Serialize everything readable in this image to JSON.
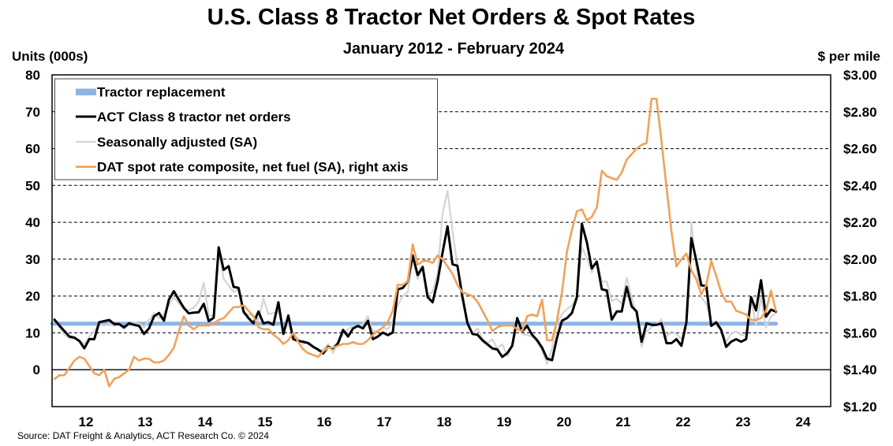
{
  "chart_data": {
    "type": "line",
    "title": "U.S. Class 8 Tractor Net Orders & Spot Rates",
    "subtitle": "January 2012 - February 2024",
    "ylabel_left": "Units (000s)",
    "ylabel_right": "$ per mile",
    "xlabel": "",
    "frequency": "monthly",
    "x_start": "2012-01",
    "x_end": "2024-02",
    "xlim": [
      2011.96,
      2025.0
    ],
    "ylim_left": [
      -10,
      80
    ],
    "ylim_right": [
      1.2,
      3.0
    ],
    "grid": "horizontal dashed at left-axis 10-unit intervals; solid line at 0",
    "x_ticks": [
      "12",
      "13",
      "14",
      "15",
      "16",
      "17",
      "18",
      "19",
      "20",
      "21",
      "22",
      "23",
      "24"
    ],
    "y_left_ticks": [
      "80",
      "70",
      "60",
      "50",
      "40",
      "30",
      "20",
      "10",
      "0"
    ],
    "y_right_ticks": [
      "$3.00",
      "$2.80",
      "$2.60",
      "$2.40",
      "$2.20",
      "$2.00",
      "$1.80",
      "$1.60",
      "$1.40",
      "$1.20"
    ],
    "legend": {
      "position": "top-left"
    },
    "series": [
      {
        "name": "Tractor replacement",
        "axis": "left",
        "color": "#8DB4E2",
        "constant_value": 12.5
      },
      {
        "name": "ACT Class 8 tractor net orders",
        "axis": "left",
        "color": "#000000",
        "values": [
          13.6,
          12.0,
          10.5,
          9.0,
          8.7,
          7.8,
          5.8,
          8.3,
          8.3,
          12.9,
          13.2,
          13.5,
          12.4,
          12.4,
          11.5,
          12.6,
          12.2,
          11.9,
          9.7,
          11.2,
          14.5,
          15.4,
          13.3,
          19.0,
          21.3,
          19.0,
          16.8,
          15.3,
          15.5,
          15.6,
          17.9,
          13.2,
          14.1,
          33.2,
          27.1,
          28.1,
          22.5,
          22.2,
          15.8,
          14.0,
          12.6,
          15.8,
          12.6,
          12.9,
          12.2,
          18.3,
          9.7,
          14.7,
          8.3,
          7.8,
          7.6,
          7.2,
          6.2,
          5.5,
          4.4,
          6.2,
          5.8,
          7.2,
          10.8,
          9.0,
          11.2,
          11.9,
          11.2,
          13.3,
          8.3,
          9.0,
          10.1,
          9.4,
          10.1,
          21.8,
          22.2,
          24.0,
          31.0,
          25.7,
          27.9,
          19.7,
          18.3,
          24.0,
          31.8,
          38.9,
          28.6,
          28.2,
          19.7,
          12.6,
          9.7,
          9.5,
          8.0,
          6.9,
          5.8,
          5.5,
          3.5,
          4.5,
          6.5,
          14.0,
          10.4,
          11.9,
          9.5,
          8.0,
          6.0,
          3.0,
          2.6,
          8.7,
          13.3,
          14.0,
          15.4,
          19.7,
          39.6,
          34.6,
          27.5,
          29.3,
          21.8,
          21.5,
          13.6,
          15.8,
          15.8,
          22.5,
          17.2,
          15.8,
          7.6,
          12.6,
          12.2,
          12.2,
          12.6,
          7.2,
          7.2,
          8.3,
          6.5,
          12.9,
          35.7,
          29.6,
          22.9,
          22.7,
          11.9,
          12.9,
          10.8,
          6.2,
          7.6,
          8.3,
          7.6,
          8.3,
          19.7,
          16.1,
          24.3,
          14.4,
          16.3,
          15.8
        ]
      },
      {
        "name": "Seasonally adjusted (SA)",
        "axis": "left",
        "color": "#D4D4D4",
        "values": [
          13.6,
          11.5,
          9.5,
          8.5,
          8.5,
          8.0,
          7.0,
          9.0,
          10.5,
          12.5,
          12.0,
          12.5,
          11.8,
          12.2,
          11.0,
          12.5,
          12.8,
          12.5,
          11.5,
          13.5,
          15.4,
          14.0,
          15.0,
          17.5,
          19.7,
          18.0,
          16.5,
          16.1,
          16.8,
          18.5,
          23.6,
          14.7,
          14.7,
          32.5,
          24.7,
          22.9,
          21.1,
          21.8,
          15.1,
          15.0,
          14.7,
          13.3,
          19.3,
          15.1,
          15.4,
          16.0,
          11.0,
          12.5,
          9.0,
          8.5,
          7.0,
          7.5,
          6.5,
          5.0,
          5.5,
          7.0,
          4.5,
          8.0,
          9.5,
          11.0,
          12.0,
          11.5,
          12.5,
          14.5,
          10.5,
          10.5,
          11.5,
          11.0,
          13.0,
          17.5,
          20.0,
          21.0,
          30.3,
          24.7,
          27.5,
          20.4,
          21.1,
          26.1,
          42.4,
          48.5,
          37.5,
          28.2,
          21.1,
          12.6,
          9.7,
          11.2,
          8.5,
          7.2,
          8.3,
          5.8,
          6.9,
          3.7,
          6.2,
          12.2,
          9.7,
          9.4,
          9.0,
          7.6,
          5.1,
          1.6,
          5.8,
          12.6,
          15.1,
          16.5,
          17.5,
          20.0,
          33.2,
          30.3,
          26.4,
          29.8,
          23.9,
          23.9,
          18.6,
          19.3,
          17.9,
          25.0,
          19.7,
          14.7,
          6.2,
          10.4,
          11.5,
          12.5,
          13.6,
          9.0,
          10.4,
          9.7,
          8.3,
          13.3,
          39.9,
          27.5,
          19.7,
          17.9,
          13.3,
          11.9,
          10.8,
          7.6,
          9.7,
          10.4,
          9.4,
          9.7,
          19.0,
          12.2,
          19.7,
          11.5,
          14.4,
          15.4
        ]
      },
      {
        "name": "DAT spot rate composite, net fuel (SA), right axis",
        "axis": "right",
        "color": "#F0A25A",
        "values": [
          1.35,
          1.37,
          1.37,
          1.41,
          1.45,
          1.47,
          1.46,
          1.42,
          1.38,
          1.37,
          1.4,
          1.31,
          1.35,
          1.36,
          1.38,
          1.4,
          1.47,
          1.45,
          1.46,
          1.46,
          1.44,
          1.44,
          1.45,
          1.48,
          1.52,
          1.61,
          1.69,
          1.64,
          1.62,
          1.64,
          1.64,
          1.64,
          1.65,
          1.67,
          1.68,
          1.71,
          1.74,
          1.74,
          1.75,
          1.72,
          1.69,
          1.63,
          1.62,
          1.62,
          1.59,
          1.57,
          1.54,
          1.56,
          1.6,
          1.55,
          1.51,
          1.49,
          1.48,
          1.47,
          1.5,
          1.52,
          1.52,
          1.53,
          1.54,
          1.54,
          1.55,
          1.54,
          1.54,
          1.56,
          1.59,
          1.61,
          1.63,
          1.66,
          1.72,
          1.86,
          1.86,
          1.88,
          2.08,
          1.97,
          1.99,
          1.99,
          1.98,
          2.02,
          2.0,
          1.96,
          1.92,
          1.86,
          1.82,
          1.81,
          1.8,
          1.77,
          1.72,
          1.67,
          1.61,
          1.63,
          1.64,
          1.64,
          1.64,
          1.62,
          1.61,
          1.69,
          1.7,
          1.69,
          1.78,
          1.56,
          1.56,
          1.67,
          1.82,
          2.04,
          2.16,
          2.26,
          2.27,
          2.21,
          2.23,
          2.28,
          2.48,
          2.45,
          2.44,
          2.43,
          2.47,
          2.54,
          2.57,
          2.6,
          2.62,
          2.63,
          2.87,
          2.87,
          2.64,
          2.39,
          2.15,
          1.96,
          2.0,
          2.03,
          1.94,
          1.89,
          1.81,
          1.86,
          1.99,
          1.91,
          1.82,
          1.77,
          1.77,
          1.72,
          1.71,
          1.7,
          1.67,
          1.67,
          1.68,
          1.72,
          1.83,
          1.72
        ]
      }
    ],
    "source": "Source: DAT Freight & Analytics, ACT Research Co. © 2024"
  }
}
